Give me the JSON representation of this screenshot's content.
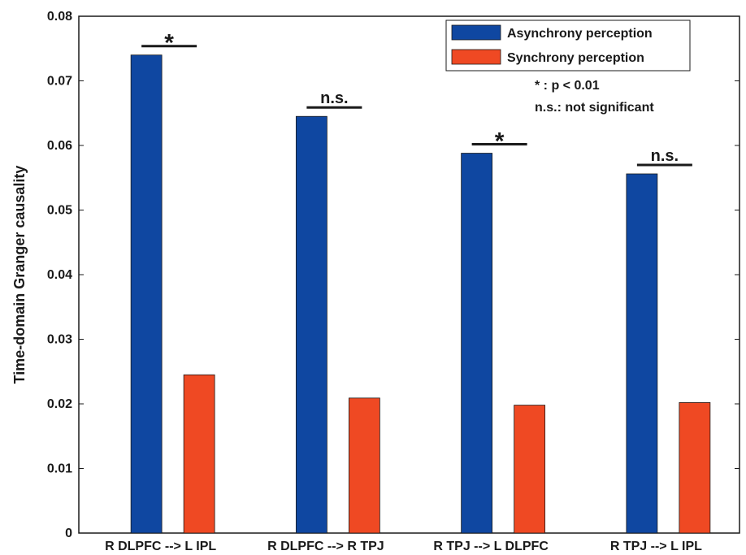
{
  "chart_data": {
    "type": "bar",
    "categories": [
      "R DLPFC --> L IPL",
      "R DLPFC --> R TPJ",
      "R TPJ --> L DLPFC",
      "R TPJ --> L IPL"
    ],
    "series": [
      {
        "name": "Asynchrony perception",
        "color": "#0f47a1",
        "values": [
          0.074,
          0.0645,
          0.0588,
          0.0556
        ]
      },
      {
        "name": "Synchrony perception",
        "color": "#ef4923",
        "values": [
          0.0245,
          0.0209,
          0.0198,
          0.0202
        ]
      }
    ],
    "ylabel": "Time-domain Granger causality",
    "xlabel": "",
    "ylim": [
      0,
      0.08
    ],
    "yticks": [
      "0",
      "0.01",
      "0.02",
      "0.03",
      "0.04",
      "0.05",
      "0.06",
      "0.07",
      "0.08"
    ],
    "legend_position": "top-right",
    "significance": [
      "*",
      "n.s.",
      "*",
      "n.s."
    ],
    "notes": [
      "* : p < 0.01",
      "n.s.: not significant"
    ]
  }
}
